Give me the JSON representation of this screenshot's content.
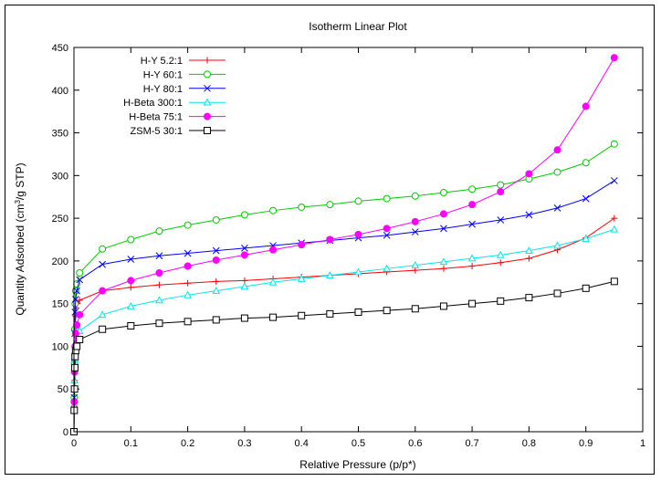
{
  "chart_data": {
    "type": "line",
    "title": "Isotherm Linear Plot",
    "xlabel": "Relative Pressure (p/p*)",
    "ylabel": {
      "pre": "Quantity Adsorbed (cm",
      "sup": "3",
      "post": "/g STP)"
    },
    "xlim": [
      0,
      1
    ],
    "ylim": [
      0,
      450
    ],
    "xticks": [
      0,
      0.1,
      0.2,
      0.3,
      0.4,
      0.5,
      0.6,
      0.7,
      0.8,
      0.9,
      1
    ],
    "xtick_labels": [
      "0",
      "0.1",
      "0.2",
      "0.3",
      "0.4",
      "0.5",
      "0.6",
      "0.7",
      "0.8",
      "0.9",
      "1"
    ],
    "yticks": [
      0,
      50,
      100,
      150,
      200,
      250,
      300,
      350,
      400,
      450
    ],
    "ytick_labels": [
      "0",
      "50",
      "100",
      "150",
      "200",
      "250",
      "300",
      "350",
      "400",
      "450"
    ],
    "legend_position": "top-left",
    "series": [
      {
        "name": "H-Y 5.2:1",
        "color": "#ff0000",
        "marker": "plus",
        "points": [
          [
            0,
            0
          ],
          [
            0.0005,
            30
          ],
          [
            0.001,
            60
          ],
          [
            0.0015,
            90
          ],
          [
            0.002,
            115
          ],
          [
            0.003,
            135
          ],
          [
            0.004,
            145
          ],
          [
            0.006,
            150
          ],
          [
            0.01,
            154
          ],
          [
            0.05,
            165
          ],
          [
            0.1,
            169
          ],
          [
            0.15,
            172
          ],
          [
            0.2,
            174
          ],
          [
            0.25,
            176
          ],
          [
            0.3,
            177
          ],
          [
            0.35,
            179
          ],
          [
            0.4,
            181
          ],
          [
            0.45,
            183
          ],
          [
            0.5,
            185
          ],
          [
            0.55,
            187
          ],
          [
            0.6,
            189
          ],
          [
            0.65,
            191
          ],
          [
            0.7,
            194
          ],
          [
            0.75,
            198
          ],
          [
            0.8,
            203
          ],
          [
            0.85,
            213
          ],
          [
            0.9,
            227
          ],
          [
            0.95,
            250
          ]
        ]
      },
      {
        "name": "H-Y 60:1",
        "color": "#00cc00",
        "marker": "circle",
        "points": [
          [
            0,
            0
          ],
          [
            0.0005,
            40
          ],
          [
            0.001,
            80
          ],
          [
            0.0015,
            120
          ],
          [
            0.002,
            150
          ],
          [
            0.003,
            165
          ],
          [
            0.005,
            173
          ],
          [
            0.01,
            186
          ],
          [
            0.05,
            214
          ],
          [
            0.1,
            225
          ],
          [
            0.15,
            235
          ],
          [
            0.2,
            242
          ],
          [
            0.25,
            248
          ],
          [
            0.3,
            254
          ],
          [
            0.35,
            259
          ],
          [
            0.4,
            263
          ],
          [
            0.45,
            266
          ],
          [
            0.5,
            270
          ],
          [
            0.55,
            273
          ],
          [
            0.6,
            276
          ],
          [
            0.65,
            280
          ],
          [
            0.7,
            284
          ],
          [
            0.75,
            289
          ],
          [
            0.8,
            296
          ],
          [
            0.85,
            304
          ],
          [
            0.9,
            315
          ],
          [
            0.95,
            337
          ]
        ]
      },
      {
        "name": "H-Y 80:1",
        "color": "#0000ff",
        "marker": "cross",
        "points": [
          [
            0,
            0
          ],
          [
            0.0005,
            40
          ],
          [
            0.001,
            80
          ],
          [
            0.0015,
            115
          ],
          [
            0.002,
            140
          ],
          [
            0.003,
            155
          ],
          [
            0.005,
            165
          ],
          [
            0.01,
            178
          ],
          [
            0.05,
            196
          ],
          [
            0.1,
            202
          ],
          [
            0.15,
            206
          ],
          [
            0.2,
            209
          ],
          [
            0.25,
            212
          ],
          [
            0.3,
            215
          ],
          [
            0.35,
            218
          ],
          [
            0.4,
            221
          ],
          [
            0.45,
            224
          ],
          [
            0.5,
            227
          ],
          [
            0.55,
            230
          ],
          [
            0.6,
            234
          ],
          [
            0.65,
            238
          ],
          [
            0.7,
            243
          ],
          [
            0.75,
            248
          ],
          [
            0.8,
            254
          ],
          [
            0.85,
            262
          ],
          [
            0.9,
            273
          ],
          [
            0.95,
            294
          ]
        ]
      },
      {
        "name": "H-Beta 300:1",
        "color": "#00e5ee",
        "marker": "triangle",
        "points": [
          [
            0,
            0
          ],
          [
            0.0005,
            30
          ],
          [
            0.001,
            60
          ],
          [
            0.002,
            85
          ],
          [
            0.003,
            100
          ],
          [
            0.005,
            110
          ],
          [
            0.01,
            118
          ],
          [
            0.05,
            137
          ],
          [
            0.1,
            147
          ],
          [
            0.15,
            154
          ],
          [
            0.2,
            160
          ],
          [
            0.25,
            165
          ],
          [
            0.3,
            170
          ],
          [
            0.35,
            175
          ],
          [
            0.4,
            179
          ],
          [
            0.45,
            183
          ],
          [
            0.5,
            187
          ],
          [
            0.55,
            191
          ],
          [
            0.6,
            195
          ],
          [
            0.65,
            199
          ],
          [
            0.7,
            203
          ],
          [
            0.75,
            207
          ],
          [
            0.8,
            212
          ],
          [
            0.85,
            218
          ],
          [
            0.9,
            226
          ],
          [
            0.95,
            237
          ]
        ]
      },
      {
        "name": "H-Beta 75:1",
        "color": "#ff00ff",
        "marker": "filled-circle",
        "points": [
          [
            0,
            0
          ],
          [
            0.0005,
            35
          ],
          [
            0.001,
            70
          ],
          [
            0.002,
            100
          ],
          [
            0.003,
            115
          ],
          [
            0.005,
            125
          ],
          [
            0.01,
            137
          ],
          [
            0.05,
            165
          ],
          [
            0.1,
            177
          ],
          [
            0.15,
            186
          ],
          [
            0.2,
            194
          ],
          [
            0.25,
            201
          ],
          [
            0.3,
            207
          ],
          [
            0.35,
            213
          ],
          [
            0.4,
            219
          ],
          [
            0.45,
            225
          ],
          [
            0.5,
            231
          ],
          [
            0.55,
            238
          ],
          [
            0.6,
            246
          ],
          [
            0.65,
            255
          ],
          [
            0.7,
            266
          ],
          [
            0.75,
            281
          ],
          [
            0.8,
            302
          ],
          [
            0.85,
            330
          ],
          [
            0.9,
            381
          ],
          [
            0.95,
            438
          ]
        ]
      },
      {
        "name": "ZSM-5 30:1",
        "color": "#000000",
        "marker": "square",
        "points": [
          [
            0,
            0
          ],
          [
            0.0005,
            25
          ],
          [
            0.001,
            50
          ],
          [
            0.0015,
            75
          ],
          [
            0.002,
            88
          ],
          [
            0.003,
            95
          ],
          [
            0.005,
            100
          ],
          [
            0.01,
            108
          ],
          [
            0.05,
            120
          ],
          [
            0.1,
            124
          ],
          [
            0.15,
            127
          ],
          [
            0.2,
            129
          ],
          [
            0.25,
            131
          ],
          [
            0.3,
            133
          ],
          [
            0.35,
            134
          ],
          [
            0.4,
            136
          ],
          [
            0.45,
            138
          ],
          [
            0.5,
            140
          ],
          [
            0.55,
            142
          ],
          [
            0.6,
            144
          ],
          [
            0.65,
            147
          ],
          [
            0.7,
            150
          ],
          [
            0.75,
            153
          ],
          [
            0.8,
            157
          ],
          [
            0.85,
            162
          ],
          [
            0.9,
            168
          ],
          [
            0.95,
            176
          ]
        ]
      }
    ]
  }
}
